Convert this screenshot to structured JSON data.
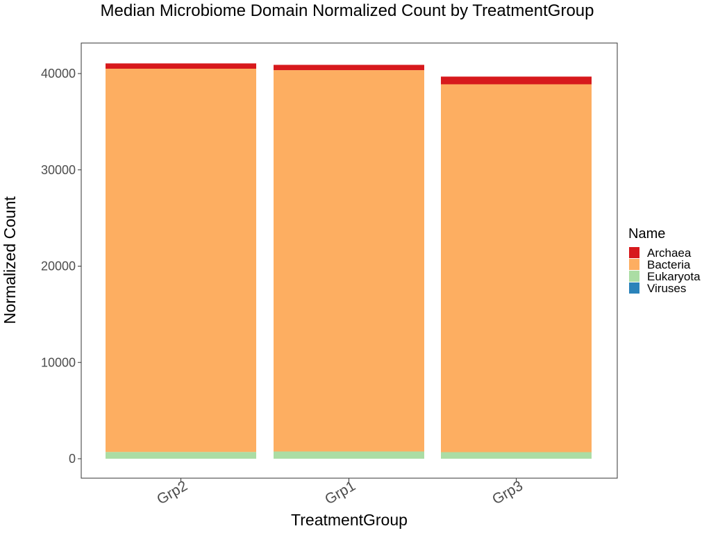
{
  "chart_data": {
    "type": "bar",
    "stacked": true,
    "title": "Median Microbiome Domain Normalized Count by TreatmentGroup",
    "xlabel": "TreatmentGroup",
    "ylabel": "Normalized Count",
    "categories": [
      "Grp2",
      "Grp1",
      "Grp3"
    ],
    "yticks": [
      "0",
      "10000",
      "20000",
      "30000",
      "40000"
    ],
    "ylim": [
      0,
      42000
    ],
    "grid": false,
    "legend": {
      "title": "Name",
      "position": "right"
    },
    "series": [
      {
        "name": "Viruses",
        "color": "#2b83ba",
        "values": [
          5,
          5,
          5
        ]
      },
      {
        "name": "Eukaryota",
        "color": "#abdda4",
        "values": [
          700,
          750,
          680
        ]
      },
      {
        "name": "Bacteria",
        "color": "#fdae61",
        "values": [
          39800,
          39600,
          38200
        ]
      },
      {
        "name": "Archaea",
        "color": "#d7191c",
        "values": [
          550,
          550,
          800
        ]
      }
    ],
    "legend_order": [
      "Archaea",
      "Bacteria",
      "Eukaryota",
      "Viruses"
    ]
  }
}
